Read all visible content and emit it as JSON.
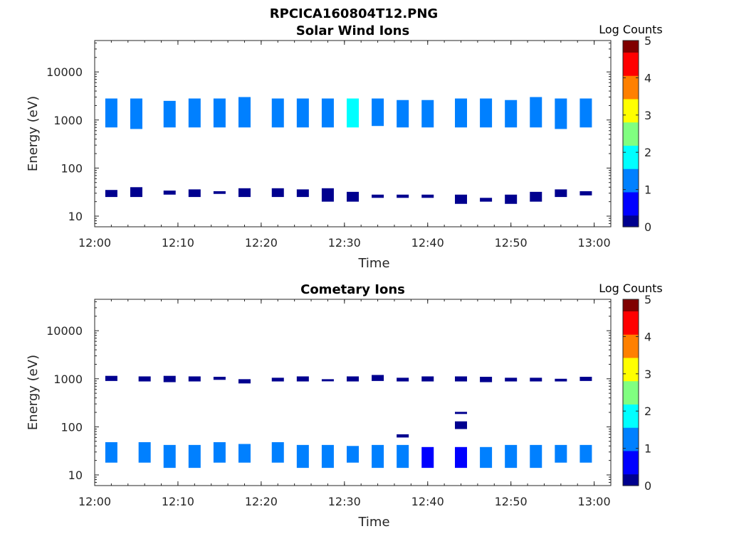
{
  "figure_title": "RPCICA160804T12.PNG",
  "colormap": [
    "#00008f",
    "#0000ff",
    "#0080ff",
    "#00ffff",
    "#80ff80",
    "#ffff00",
    "#ff8000",
    "#ff0000",
    "#800000"
  ],
  "chart_data": [
    {
      "type": "heatmap",
      "title": "Solar Wind Ions",
      "xlabel": "Time",
      "ylabel": "Energy (eV)",
      "y_scale": "log",
      "xlim": [
        "12:00",
        "13:02"
      ],
      "ylim": [
        6,
        45000
      ],
      "x_ticks": [
        "12:00",
        "12:10",
        "12:20",
        "12:30",
        "12:40",
        "12:50",
        "13:00"
      ],
      "y_ticks": [
        "10",
        "100",
        "1000",
        "10000"
      ],
      "colorbar": {
        "label": "Log Counts",
        "range": [
          0,
          5
        ],
        "ticks": [
          "0",
          "1",
          "2",
          "3",
          "4",
          "5"
        ]
      },
      "cells": [
        {
          "t": "12:02",
          "e": [
            700,
            2800
          ],
          "c": 1.1
        },
        {
          "t": "12:02",
          "e": [
            25,
            35
          ],
          "c": 0.2
        },
        {
          "t": "12:05",
          "e": [
            650,
            2800
          ],
          "c": 1.3
        },
        {
          "t": "12:05",
          "e": [
            25,
            40
          ],
          "c": 0.2
        },
        {
          "t": "12:09",
          "e": [
            700,
            2500
          ],
          "c": 1.1
        },
        {
          "t": "12:09",
          "e": [
            28,
            34
          ],
          "c": 0.1
        },
        {
          "t": "12:12",
          "e": [
            700,
            2800
          ],
          "c": 1.2
        },
        {
          "t": "12:12",
          "e": [
            25,
            36
          ],
          "c": 0.2
        },
        {
          "t": "12:15",
          "e": [
            700,
            2800
          ],
          "c": 1.1
        },
        {
          "t": "12:15",
          "e": [
            29,
            33
          ],
          "c": 0.1
        },
        {
          "t": "12:18",
          "e": [
            700,
            3000
          ],
          "c": 1.5
        },
        {
          "t": "12:18",
          "e": [
            25,
            38
          ],
          "c": 0.2
        },
        {
          "t": "12:22",
          "e": [
            700,
            2800
          ],
          "c": 1.4
        },
        {
          "t": "12:22",
          "e": [
            25,
            38
          ],
          "c": 0.2
        },
        {
          "t": "12:25",
          "e": [
            700,
            2800
          ],
          "c": 1.3
        },
        {
          "t": "12:25",
          "e": [
            25,
            36
          ],
          "c": 0.2
        },
        {
          "t": "12:28",
          "e": [
            700,
            2800
          ],
          "c": 1.4
        },
        {
          "t": "12:28",
          "e": [
            20,
            38
          ],
          "c": 0.2
        },
        {
          "t": "12:31",
          "e": [
            700,
            2800
          ],
          "c": 1.6
        },
        {
          "t": "12:31",
          "e": [
            20,
            32
          ],
          "c": 0.1
        },
        {
          "t": "12:34",
          "e": [
            750,
            2800
          ],
          "c": 1.4
        },
        {
          "t": "12:34",
          "e": [
            24,
            28
          ],
          "c": 0.1
        },
        {
          "t": "12:37",
          "e": [
            700,
            2600
          ],
          "c": 1.5
        },
        {
          "t": "12:37",
          "e": [
            24,
            28
          ],
          "c": 0.1
        },
        {
          "t": "12:40",
          "e": [
            700,
            2600
          ],
          "c": 1.4
        },
        {
          "t": "12:40",
          "e": [
            24,
            28
          ],
          "c": 0.1
        },
        {
          "t": "12:44",
          "e": [
            700,
            2800
          ],
          "c": 1.3
        },
        {
          "t": "12:44",
          "e": [
            18,
            28
          ],
          "c": 0.1
        },
        {
          "t": "12:47",
          "e": [
            700,
            2800
          ],
          "c": 1.5
        },
        {
          "t": "12:47",
          "e": [
            20,
            24
          ],
          "c": 0.1
        },
        {
          "t": "12:50",
          "e": [
            700,
            2600
          ],
          "c": 1.3
        },
        {
          "t": "12:50",
          "e": [
            18,
            28
          ],
          "c": 0.1
        },
        {
          "t": "12:53",
          "e": [
            700,
            3000
          ],
          "c": 1.4
        },
        {
          "t": "12:53",
          "e": [
            20,
            32
          ],
          "c": 0.1
        },
        {
          "t": "12:56",
          "e": [
            650,
            2800
          ],
          "c": 1.3
        },
        {
          "t": "12:56",
          "e": [
            25,
            36
          ],
          "c": 0.1
        },
        {
          "t": "12:59",
          "e": [
            700,
            2800
          ],
          "c": 1.2
        },
        {
          "t": "12:59",
          "e": [
            27,
            33
          ],
          "c": 0.1
        }
      ]
    },
    {
      "type": "heatmap",
      "title": "Cometary Ions",
      "xlabel": "Time",
      "ylabel": "Energy (eV)",
      "y_scale": "log",
      "xlim": [
        "12:00",
        "13:02"
      ],
      "ylim": [
        6,
        45000
      ],
      "x_ticks": [
        "12:00",
        "12:10",
        "12:20",
        "12:30",
        "12:40",
        "12:50",
        "13:00"
      ],
      "y_ticks": [
        "10",
        "100",
        "1000",
        "10000"
      ],
      "colorbar": {
        "label": "Log Counts",
        "range": [
          0,
          5
        ],
        "ticks": [
          "0",
          "1",
          "2",
          "3",
          "4",
          "5"
        ]
      },
      "cells": [
        {
          "t": "12:02",
          "e": [
            900,
            1150
          ],
          "c": 0.1
        },
        {
          "t": "12:02",
          "e": [
            18,
            48
          ],
          "c": 1.4
        },
        {
          "t": "12:06",
          "e": [
            880,
            1120
          ],
          "c": 0.1
        },
        {
          "t": "12:06",
          "e": [
            18,
            48
          ],
          "c": 1.5
        },
        {
          "t": "12:09",
          "e": [
            850,
            1150
          ],
          "c": 0.1
        },
        {
          "t": "12:09",
          "e": [
            14,
            42
          ],
          "c": 1.3
        },
        {
          "t": "12:12",
          "e": [
            880,
            1120
          ],
          "c": 0.1
        },
        {
          "t": "12:12",
          "e": [
            14,
            42
          ],
          "c": 1.3
        },
        {
          "t": "12:15",
          "e": [
            950,
            1100
          ],
          "c": 0.1
        },
        {
          "t": "12:15",
          "e": [
            18,
            48
          ],
          "c": 1.5
        },
        {
          "t": "12:18",
          "e": [
            800,
            980
          ],
          "c": 0.1
        },
        {
          "t": "12:18",
          "e": [
            18,
            44
          ],
          "c": 1.4
        },
        {
          "t": "12:22",
          "e": [
            880,
            1050
          ],
          "c": 0.1
        },
        {
          "t": "12:22",
          "e": [
            18,
            48
          ],
          "c": 1.4
        },
        {
          "t": "12:25",
          "e": [
            880,
            1120
          ],
          "c": 0.1
        },
        {
          "t": "12:25",
          "e": [
            14,
            42
          ],
          "c": 1.3
        },
        {
          "t": "12:28",
          "e": [
            900,
            980
          ],
          "c": 0.1
        },
        {
          "t": "12:28",
          "e": [
            14,
            42
          ],
          "c": 1.3
        },
        {
          "t": "12:31",
          "e": [
            880,
            1120
          ],
          "c": 0.1
        },
        {
          "t": "12:31",
          "e": [
            18,
            40
          ],
          "c": 1.2
        },
        {
          "t": "12:34",
          "e": [
            900,
            1200
          ],
          "c": 0.1
        },
        {
          "t": "12:34",
          "e": [
            14,
            42
          ],
          "c": 1.4
        },
        {
          "t": "12:37",
          "e": [
            880,
            1050
          ],
          "c": 0.1
        },
        {
          "t": "12:37",
          "e": [
            14,
            42
          ],
          "c": 1.5
        },
        {
          "t": "12:37",
          "e": [
            60,
            70
          ],
          "c": 0.1
        },
        {
          "t": "12:40",
          "e": [
            880,
            1120
          ],
          "c": 0.1
        },
        {
          "t": "12:40",
          "e": [
            14,
            38
          ],
          "c": 0.8
        },
        {
          "t": "12:44",
          "e": [
            880,
            1120
          ],
          "c": 0.1
        },
        {
          "t": "12:44",
          "e": [
            14,
            38
          ],
          "c": 0.8
        },
        {
          "t": "12:44",
          "e": [
            90,
            130
          ],
          "c": 0.1
        },
        {
          "t": "12:44",
          "e": [
            190,
            205
          ],
          "c": 0.1
        },
        {
          "t": "12:47",
          "e": [
            850,
            1100
          ],
          "c": 0.1
        },
        {
          "t": "12:47",
          "e": [
            14,
            38
          ],
          "c": 1.0
        },
        {
          "t": "12:50",
          "e": [
            880,
            1050
          ],
          "c": 0.1
        },
        {
          "t": "12:50",
          "e": [
            14,
            42
          ],
          "c": 1.1
        },
        {
          "t": "12:53",
          "e": [
            880,
            1050
          ],
          "c": 0.1
        },
        {
          "t": "12:53",
          "e": [
            14,
            42
          ],
          "c": 1.3
        },
        {
          "t": "12:56",
          "e": [
            880,
            1000
          ],
          "c": 0.1
        },
        {
          "t": "12:56",
          "e": [
            18,
            42
          ],
          "c": 1.3
        },
        {
          "t": "12:59",
          "e": [
            900,
            1100
          ],
          "c": 0.1
        },
        {
          "t": "12:59",
          "e": [
            18,
            42
          ],
          "c": 1.2
        }
      ]
    }
  ]
}
